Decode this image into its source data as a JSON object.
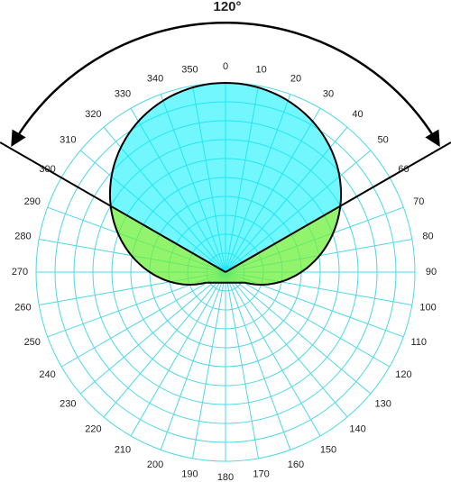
{
  "annotation": "120°",
  "angle_labels": [
    "0",
    "10",
    "20",
    "30",
    "40",
    "50",
    "60",
    "70",
    "80",
    "90",
    "100",
    "110",
    "120",
    "130",
    "140",
    "150",
    "160",
    "170",
    "180",
    "190",
    "200",
    "210",
    "220",
    "230",
    "240",
    "250",
    "260",
    "270",
    "280",
    "290",
    "300",
    "310",
    "320",
    "330",
    "340",
    "350"
  ]
}
